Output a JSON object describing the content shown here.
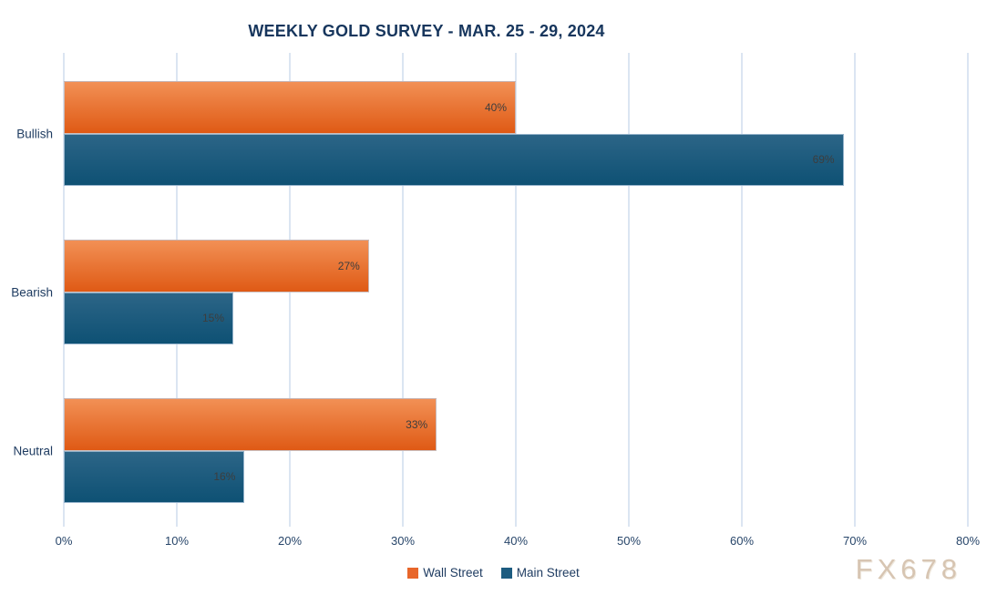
{
  "title": "WEEKLY GOLD SURVEY - MAR. 25 - 29, 2024",
  "watermark": "FX678",
  "colors": {
    "title_text": "#17365d",
    "axis_text": "#28466a",
    "category_text": "#1f3c61",
    "value_label_text": "#3d3d3d",
    "gridline": "#dbe5f2",
    "wall_street": "#e8662a",
    "wall_street_gradient_top": "#f29055",
    "wall_street_gradient_bottom": "#df5a15",
    "main_street": "#1d5c80",
    "main_street_gradient_top": "#2c6587",
    "main_street_gradient_bottom": "#0e5174",
    "watermark_text": "#d7c5b2"
  },
  "chart_data": {
    "type": "bar",
    "orientation": "horizontal",
    "title": "WEEKLY GOLD SURVEY - MAR. 25 - 29, 2024",
    "categories": [
      "Bullish",
      "Bearish",
      "Neutral"
    ],
    "series": [
      {
        "name": "Wall Street",
        "color": "#e8662a",
        "values": [
          40,
          27,
          33
        ],
        "value_labels": [
          "40%",
          "27%",
          "33%"
        ]
      },
      {
        "name": "Main Street",
        "color": "#1d5c80",
        "values": [
          69,
          15,
          16
        ],
        "value_labels": [
          "69%",
          "15%",
          "16%"
        ]
      }
    ],
    "xlim": [
      0,
      80
    ],
    "x_tick_labels": [
      "0%",
      "10%",
      "20%",
      "30%",
      "40%",
      "50%",
      "60%",
      "70%",
      "80%"
    ],
    "grid": "vertical",
    "legend_position": "bottom",
    "value_labels_position": "inside-end"
  },
  "legend": {
    "items": [
      {
        "label": "Wall Street"
      },
      {
        "label": "Main Street"
      }
    ]
  }
}
